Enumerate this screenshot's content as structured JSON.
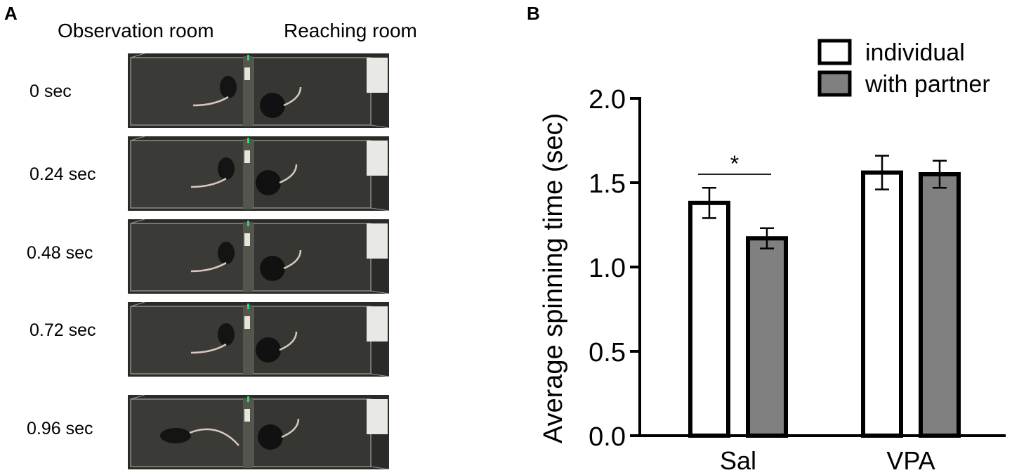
{
  "panels": {
    "a_letter": "A",
    "b_letter": "B"
  },
  "panel_a": {
    "rooms": {
      "observation": "Observation room",
      "reaching": "Reaching room"
    },
    "frames": [
      {
        "time": "0 sec"
      },
      {
        "time": "0.24 sec"
      },
      {
        "time": "0.48 sec"
      },
      {
        "time": "0.72 sec"
      },
      {
        "time": "0.96 sec"
      }
    ]
  },
  "colors": {
    "individual": "#ffffff",
    "with_partner": "#808080",
    "frame_bg": "#1e1f1d"
  },
  "chart_data": {
    "type": "bar",
    "categories": [
      "Sal",
      "VPA"
    ],
    "series": [
      {
        "name": "individual",
        "values": [
          1.38,
          1.56
        ],
        "errors": [
          0.09,
          0.1
        ]
      },
      {
        "name": "with partner",
        "values": [
          1.17,
          1.55
        ],
        "errors": [
          0.06,
          0.08
        ]
      }
    ],
    "ylabel": "Average  spinning time (sec)",
    "ylim": [
      0.0,
      2.0
    ],
    "yticks": [
      "0.0",
      "0.5",
      "1.0",
      "1.5",
      "2.0"
    ],
    "legend_placement": "top-right",
    "annotation": "*"
  }
}
